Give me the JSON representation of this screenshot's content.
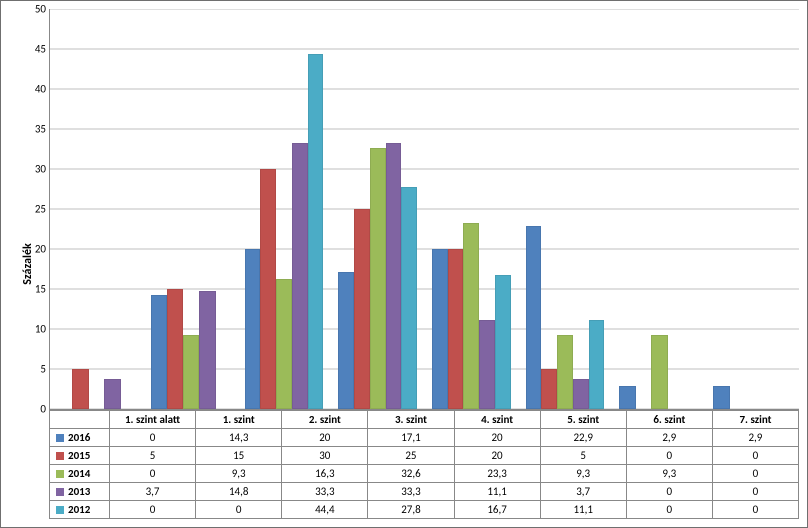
{
  "chart": {
    "type": "bar",
    "ylabel": "Százalék",
    "ylim": [
      0,
      50
    ],
    "ytick_step": 5,
    "background_color": "#ffffff",
    "grid_color": "#bfbfbf",
    "axis_color": "#888888",
    "label_fontsize": 11,
    "ylabel_fontsize": 12,
    "categories": [
      "1. szint alatt",
      "1. szint",
      "2. szint",
      "3. szint",
      "4. szint",
      "5. szint",
      "6. szint",
      "7. szint"
    ],
    "series": [
      {
        "name": "2016",
        "color": "#4f81bd",
        "values": [
          0,
          14.3,
          20,
          17.1,
          20,
          22.9,
          2.9,
          2.9
        ]
      },
      {
        "name": "2015",
        "color": "#c0504d",
        "values": [
          5,
          15,
          30,
          25,
          20,
          5,
          0,
          0
        ]
      },
      {
        "name": "2014",
        "color": "#9bbb59",
        "values": [
          0,
          9.3,
          16.3,
          32.6,
          23.3,
          9.3,
          9.3,
          0
        ]
      },
      {
        "name": "2013",
        "color": "#8064a2",
        "values": [
          3.7,
          14.8,
          33.3,
          33.3,
          11.1,
          3.7,
          0,
          0
        ]
      },
      {
        "name": "2012",
        "color": "#4bacc6",
        "values": [
          0,
          0,
          44.4,
          27.8,
          16.7,
          11.1,
          0,
          0
        ]
      }
    ],
    "table_display": {
      "2016": [
        "0",
        "14,3",
        "20",
        "17,1",
        "20",
        "22,9",
        "2,9",
        "2,9"
      ],
      "2015": [
        "5",
        "15",
        "30",
        "25",
        "20",
        "5",
        "0",
        "0"
      ],
      "2014": [
        "0",
        "9,3",
        "16,3",
        "32,6",
        "23,3",
        "9,3",
        "9,3",
        "0"
      ],
      "2013": [
        "3,7",
        "14,8",
        "33,3",
        "33,3",
        "11,1",
        "3,7",
        "0",
        "0"
      ],
      "2012": [
        "0",
        "0",
        "44,4",
        "27,8",
        "16,7",
        "11,1",
        "0",
        "0"
      ]
    }
  }
}
